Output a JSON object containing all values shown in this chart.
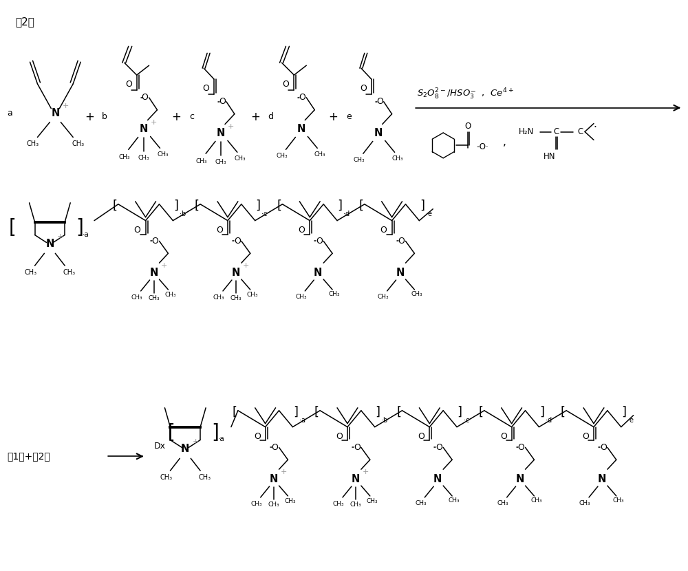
{
  "bg_color": "#ffffff",
  "line_color": "#000000",
  "magenta_color": "#999999",
  "figsize": [
    10.0,
    8.3
  ],
  "dpi": 100,
  "label2": "(2)",
  "label1plus2": "(1)+(2)",
  "arrow_label_top": "S₂O₈²⁻/HSO₃⁻ , Ce⁴⁺",
  "label_a": "a",
  "label_b": "b",
  "label_c": "c",
  "label_d": "d",
  "label_e": "e"
}
